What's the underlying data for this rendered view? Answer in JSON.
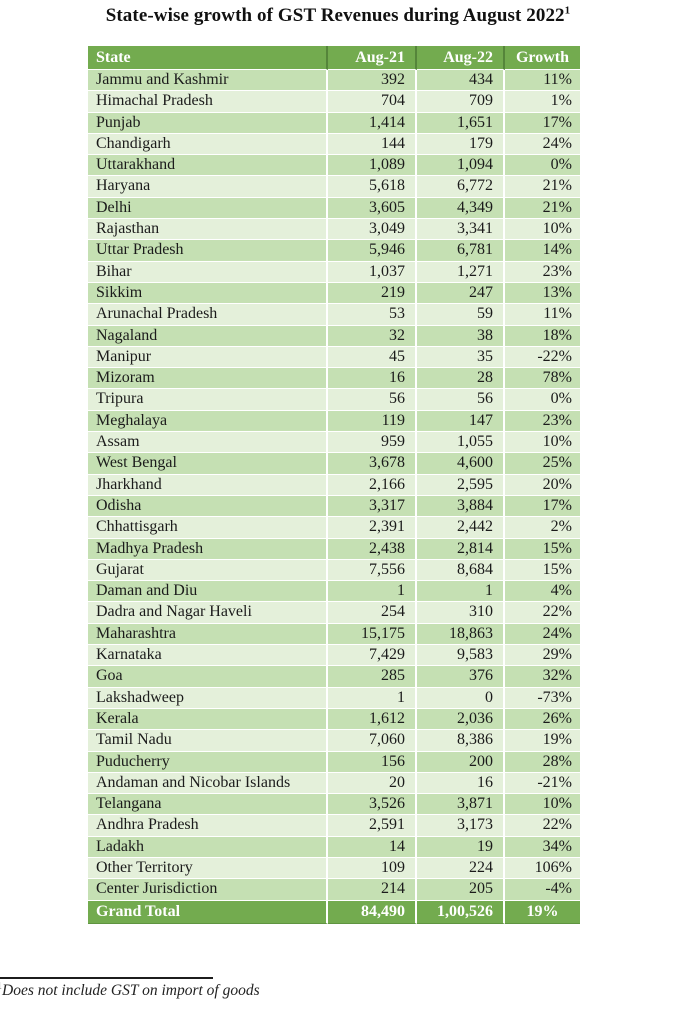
{
  "page": {
    "title": "State-wise growth of GST Revenues during August 2022",
    "title_superscript": "1",
    "footnote_marker": "1",
    "footnote_text": "Does not include GST on import of goods"
  },
  "colors": {
    "header_bg": "#73AB4F",
    "header_text": "#FFFFFF",
    "header_divider": "#55853A",
    "row_odd": "#C5E0B3",
    "row_even": "#E4F0DA",
    "total_bg": "#73AB4F",
    "body_text": "#1B1B1B"
  },
  "table": {
    "columns": [
      "State",
      "Aug-21",
      "Aug-22",
      "Growth"
    ],
    "rows": [
      [
        "Jammu and Kashmir",
        "392",
        "434",
        "11%"
      ],
      [
        "Himachal Pradesh",
        "704",
        "709",
        "1%"
      ],
      [
        "Punjab",
        "1,414",
        "1,651",
        "17%"
      ],
      [
        "Chandigarh",
        "144",
        "179",
        "24%"
      ],
      [
        "Uttarakhand",
        "1,089",
        "1,094",
        "0%"
      ],
      [
        "Haryana",
        "5,618",
        "6,772",
        "21%"
      ],
      [
        "Delhi",
        "3,605",
        "4,349",
        "21%"
      ],
      [
        "Rajasthan",
        "3,049",
        "3,341",
        "10%"
      ],
      [
        "Uttar Pradesh",
        "5,946",
        "6,781",
        "14%"
      ],
      [
        "Bihar",
        "1,037",
        "1,271",
        "23%"
      ],
      [
        "Sikkim",
        "219",
        "247",
        "13%"
      ],
      [
        "Arunachal Pradesh",
        "53",
        "59",
        "11%"
      ],
      [
        "Nagaland",
        "32",
        "38",
        "18%"
      ],
      [
        "Manipur",
        "45",
        "35",
        "-22%"
      ],
      [
        "Mizoram",
        "16",
        "28",
        "78%"
      ],
      [
        "Tripura",
        "56",
        "56",
        "0%"
      ],
      [
        "Meghalaya",
        "119",
        "147",
        "23%"
      ],
      [
        "Assam",
        "959",
        "1,055",
        "10%"
      ],
      [
        "West Bengal",
        "3,678",
        "4,600",
        "25%"
      ],
      [
        "Jharkhand",
        "2,166",
        "2,595",
        "20%"
      ],
      [
        "Odisha",
        "3,317",
        "3,884",
        "17%"
      ],
      [
        "Chhattisgarh",
        "2,391",
        "2,442",
        "2%"
      ],
      [
        "Madhya Pradesh",
        "2,438",
        "2,814",
        "15%"
      ],
      [
        "Gujarat",
        "7,556",
        "8,684",
        "15%"
      ],
      [
        "Daman and Diu",
        "1",
        "1",
        "4%"
      ],
      [
        "Dadra and Nagar Haveli",
        "254",
        "310",
        "22%"
      ],
      [
        "Maharashtra",
        "15,175",
        "18,863",
        "24%"
      ],
      [
        "Karnataka",
        "7,429",
        "9,583",
        "29%"
      ],
      [
        "Goa",
        "285",
        "376",
        "32%"
      ],
      [
        "Lakshadweep",
        "1",
        "0",
        "-73%"
      ],
      [
        "Kerala",
        "1,612",
        "2,036",
        "26%"
      ],
      [
        "Tamil Nadu",
        "7,060",
        "8,386",
        "19%"
      ],
      [
        "Puducherry",
        "156",
        "200",
        "28%"
      ],
      [
        "Andaman and Nicobar Islands",
        "20",
        "16",
        "-21%"
      ],
      [
        "Telangana",
        "3,526",
        "3,871",
        "10%"
      ],
      [
        "Andhra Pradesh",
        "2,591",
        "3,173",
        "22%"
      ],
      [
        "Ladakh",
        "14",
        "19",
        "34%"
      ],
      [
        "Other Territory",
        "109",
        "224",
        "106%"
      ],
      [
        "Center Jurisdiction",
        "214",
        "205",
        "-4%"
      ]
    ],
    "grand_total": [
      "Grand Total",
      "84,490",
      "1,00,526",
      "19%"
    ]
  }
}
